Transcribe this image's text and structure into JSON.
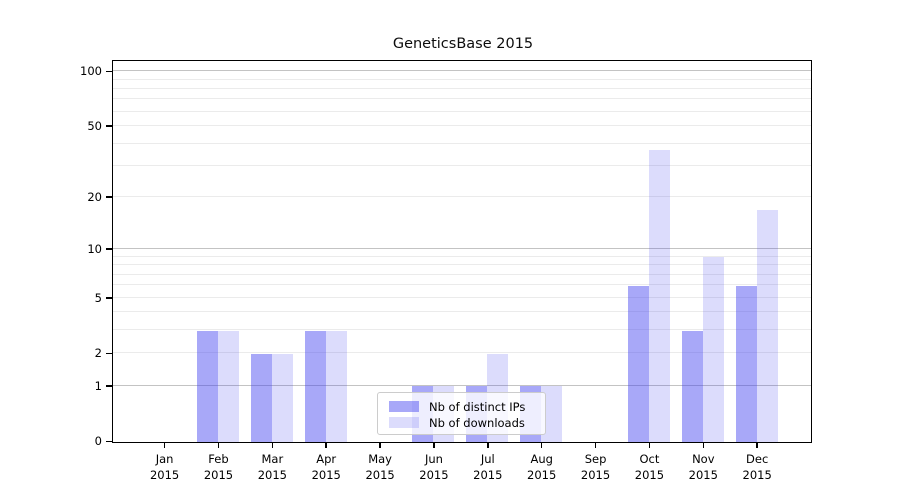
{
  "title": "GeneticsBase 2015",
  "chart_data": {
    "type": "bar",
    "title": "GeneticsBase 2015",
    "categories": [
      "Jan 2015",
      "Feb 2015",
      "Mar 2015",
      "Apr 2015",
      "May 2015",
      "Jun 2015",
      "Jul 2015",
      "Aug 2015",
      "Sep 2015",
      "Oct 2015",
      "Nov 2015",
      "Dec 2015"
    ],
    "series": [
      {
        "name": "Nb of distinct IPs",
        "color": "rgba(61,61,239,0.45)",
        "color_on_white": "#a8a8f2",
        "values": [
          0,
          3,
          2,
          3,
          0,
          1,
          1,
          1,
          0,
          6,
          3,
          6
        ]
      },
      {
        "name": "Nb of downloads",
        "color": "rgba(61,61,239,0.18)",
        "color_on_white": "#dcdcf8",
        "values": [
          0,
          3,
          2,
          3,
          0,
          1,
          2,
          1,
          0,
          37,
          9,
          17
        ]
      }
    ],
    "ylabel": "",
    "xlabel": "",
    "yticks": [
      0,
      1,
      2,
      5,
      10,
      20,
      50,
      100
    ],
    "scale": "log1p",
    "ylim": [
      0,
      113
    ],
    "grid": {
      "on": true,
      "major_values": [
        1,
        10,
        100
      ],
      "minor_values": [
        2,
        3,
        4,
        5,
        6,
        7,
        8,
        9,
        20,
        30,
        40,
        50,
        60,
        70,
        80,
        90
      ],
      "major_color": "#c3c3c3",
      "minor_color": "#ebebeb"
    },
    "legend": {
      "position": "lower center"
    },
    "axis_color": "#000000",
    "background": "#ffffff"
  }
}
